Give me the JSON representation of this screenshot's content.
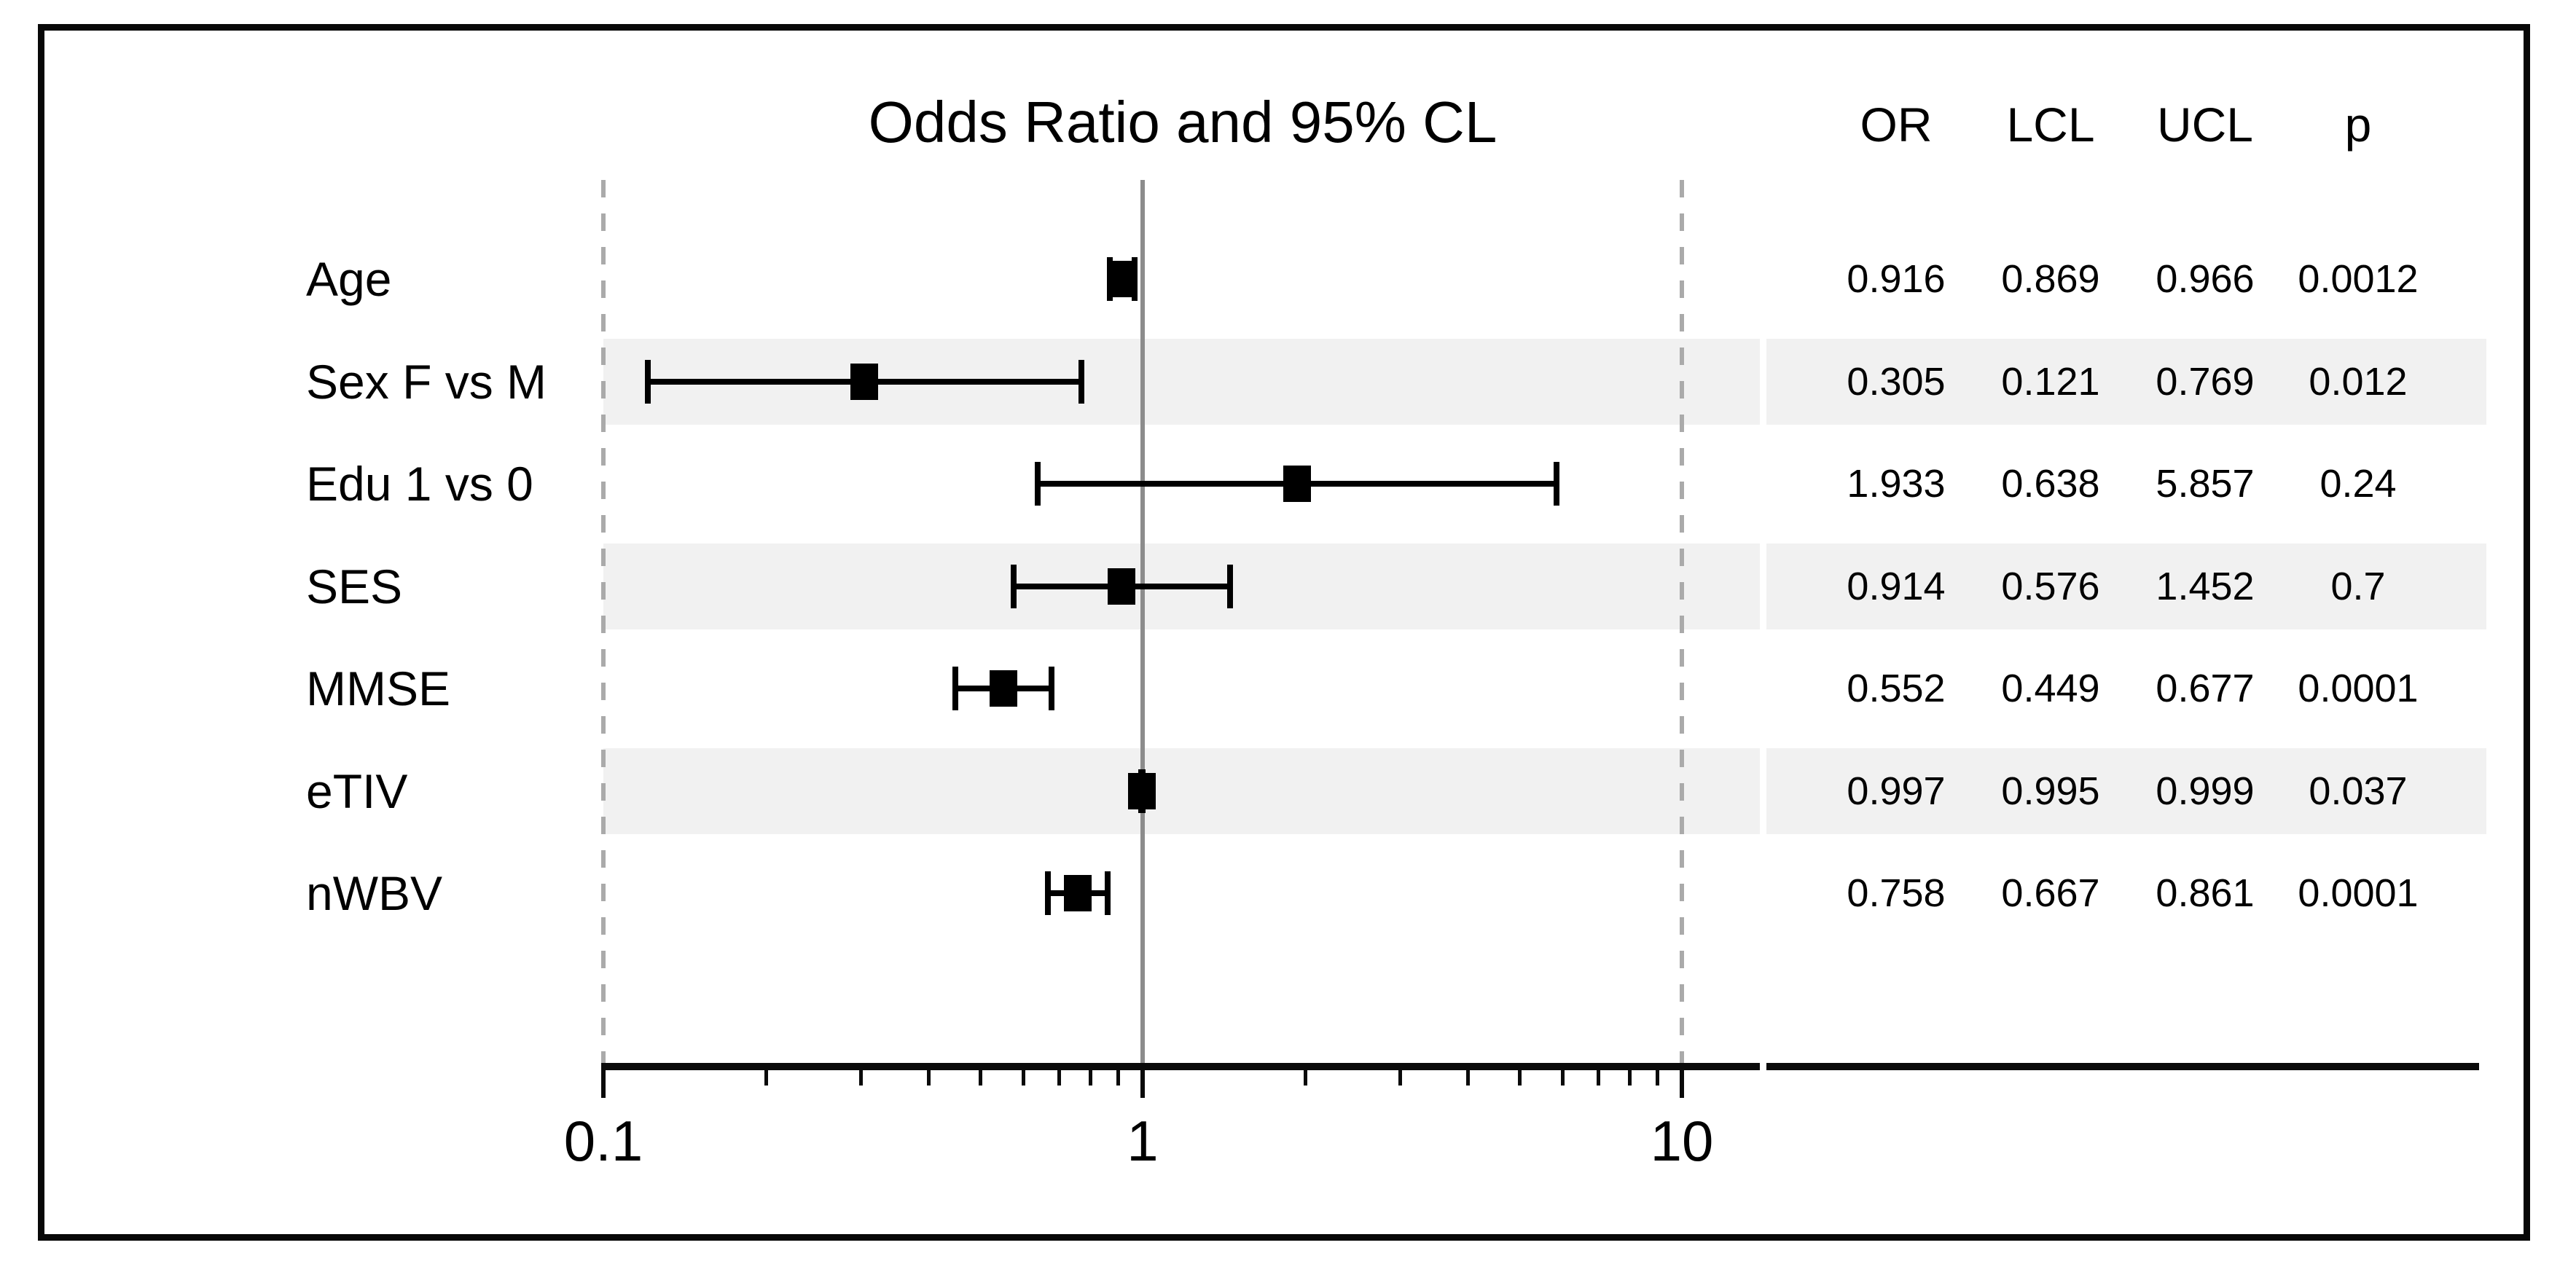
{
  "chart_data": {
    "type": "forest",
    "title": "Odds Ratio and 95% CL",
    "columns": [
      "OR",
      "LCL",
      "UCL",
      "p"
    ],
    "x_axis": {
      "scale": "log10",
      "tick_labels": [
        "0.1",
        "1",
        "10"
      ],
      "tick_values": [
        0.1,
        1,
        10
      ],
      "minor_ticks": [
        0.2,
        0.3,
        0.4,
        0.5,
        0.6,
        0.7,
        0.8,
        0.9,
        2,
        3,
        4,
        5,
        6,
        7,
        8,
        9
      ],
      "range": [
        0.1,
        14
      ]
    },
    "reference_lines": [
      {
        "value": 0.1,
        "style": "dashed"
      },
      {
        "value": 1,
        "style": "solid"
      },
      {
        "value": 10,
        "style": "dashed"
      }
    ],
    "rows": [
      {
        "label": "Age",
        "or": "0.916",
        "lcl": "0.869",
        "ucl": "0.966",
        "p": "0.0012"
      },
      {
        "label": "Sex F vs M",
        "or": "0.305",
        "lcl": "0.121",
        "ucl": "0.769",
        "p": "0.012"
      },
      {
        "label": "Edu 1 vs 0",
        "or": "1.933",
        "lcl": "0.638",
        "ucl": "5.857",
        "p": "0.24"
      },
      {
        "label": "SES",
        "or": "0.914",
        "lcl": "0.576",
        "ucl": "1.452",
        "p": "0.7"
      },
      {
        "label": "MMSE",
        "or": "0.552",
        "lcl": "0.449",
        "ucl": "0.677",
        "p": "0.0001"
      },
      {
        "label": "eTIV",
        "or": "0.997",
        "lcl": "0.995",
        "ucl": "0.999",
        "p": "0.037"
      },
      {
        "label": "nWBV",
        "or": "0.758",
        "lcl": "0.667",
        "ucl": "0.861",
        "p": "0.0001"
      }
    ],
    "striped_row_indices": [
      1,
      3,
      5
    ],
    "colors": {
      "band": "#f1f1f1",
      "reference_solid": "#8c8c8c",
      "reference_dashed": "#aaaaaa",
      "marker": "#000000",
      "axis": "#0a0a0a"
    }
  }
}
